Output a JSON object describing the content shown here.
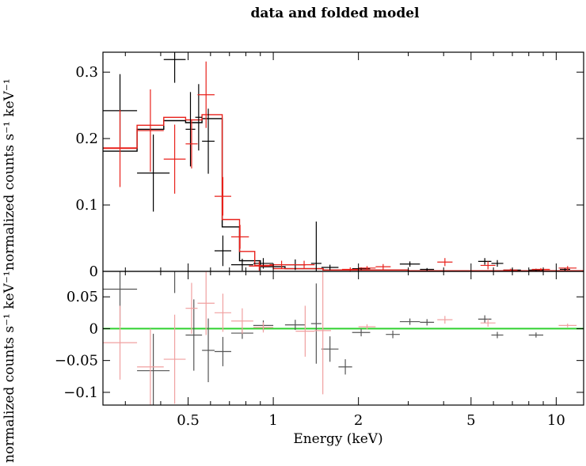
{
  "chart_data": {
    "type": "scatter",
    "title": "data and folded model",
    "xlabel": "Energy (keV)",
    "x_scale": "log",
    "xlim": [
      0.25,
      12.5
    ],
    "x_ticks": [
      {
        "value": 0.5,
        "label": "0.5"
      },
      {
        "value": 1,
        "label": "1"
      },
      {
        "value": 2,
        "label": "2"
      },
      {
        "value": 5,
        "label": "5"
      },
      {
        "value": 10,
        "label": "10"
      }
    ],
    "panels": [
      {
        "id": "top",
        "ylabel": "normalized counts s⁻¹ keV⁻¹",
        "ylim": [
          0,
          0.33
        ],
        "y_ticks": [
          {
            "value": 0,
            "label": "0"
          },
          {
            "value": 0.1,
            "label": "0.1"
          },
          {
            "value": 0.2,
            "label": "0.2"
          },
          {
            "value": 0.3,
            "label": "0.3"
          }
        ],
        "series": [
          {
            "color": "#000000",
            "points": [
              [
                0.25,
                0.33,
                0.242,
                0.055
              ],
              [
                0.33,
                0.43,
                0.148,
                0.058
              ],
              [
                0.41,
                0.49,
                0.319,
                0.035
              ],
              [
                0.49,
                0.53,
                0.214,
                0.056
              ],
              [
                0.53,
                0.56,
                0.232,
                0.05
              ],
              [
                0.56,
                0.62,
                0.196,
                0.049
              ],
              [
                0.62,
                0.71,
                0.031,
                0.023
              ],
              [
                0.71,
                0.85,
                0.01,
                0.009
              ],
              [
                0.85,
                1.0,
                0.012,
                0.008
              ],
              [
                1.1,
                1.3,
                0.01,
                0.008
              ],
              [
                1.36,
                1.48,
                0.012,
                0.063
              ],
              [
                1.48,
                1.7,
                0.006,
                0.004
              ],
              [
                1.9,
                2.2,
                0.004,
                0.002
              ],
              [
                2.8,
                3.3,
                0.011,
                0.004
              ],
              [
                3.3,
                3.7,
                0.003,
                0.002
              ],
              [
                5.3,
                5.9,
                0.015,
                0.005
              ],
              [
                5.9,
                6.5,
                0.012,
                0.005
              ],
              [
                6.5,
                7.5,
                0.002,
                0.002
              ],
              [
                8.0,
                9.0,
                0.002,
                0.002
              ],
              [
                10.3,
                11.2,
                0.003,
                0.002
              ]
            ],
            "model_steps": [
              [
                0.25,
                0.33,
                0.181
              ],
              [
                0.33,
                0.41,
                0.214
              ],
              [
                0.41,
                0.49,
                0.227
              ],
              [
                0.49,
                0.56,
                0.224
              ],
              [
                0.56,
                0.62,
                0.23
              ],
              [
                0.62,
                0.66,
                0.23
              ],
              [
                0.66,
                0.76,
                0.067
              ],
              [
                0.76,
                0.9,
                0.016
              ],
              [
                0.9,
                1.1,
                0.007
              ],
              [
                1.1,
                1.5,
                0.004
              ],
              [
                1.5,
                3.0,
                0.002
              ],
              [
                3.0,
                12.5,
                0.001
              ]
            ]
          },
          {
            "color": "#e8211b",
            "points": [
              [
                0.25,
                0.33,
                0.185,
                0.058
              ],
              [
                0.33,
                0.41,
                0.212,
                0.062
              ],
              [
                0.41,
                0.49,
                0.169,
                0.052
              ],
              [
                0.49,
                0.54,
                0.192,
                0.037
              ],
              [
                0.54,
                0.62,
                0.266,
                0.05
              ],
              [
                0.62,
                0.71,
                0.113,
                0.029
              ],
              [
                0.71,
                0.82,
                0.052,
                0.018
              ],
              [
                0.82,
                0.97,
                0.008,
                0.007
              ],
              [
                0.97,
                1.18,
                0.01,
                0.006
              ],
              [
                1.18,
                1.4,
                0.01,
                0.006
              ],
              [
                1.75,
                2.0,
                0.003,
                0.003
              ],
              [
                2.0,
                2.3,
                0.005,
                0.003
              ],
              [
                2.3,
                2.6,
                0.007,
                0.004
              ],
              [
                3.8,
                4.3,
                0.014,
                0.006
              ],
              [
                5.4,
                6.1,
                0.009,
                0.006
              ],
              [
                6.5,
                7.3,
                0.002,
                0.002
              ],
              [
                8.2,
                9.5,
                0.003,
                0.002
              ],
              [
                10.2,
                11.8,
                0.005,
                0.003
              ]
            ],
            "model_steps": [
              [
                0.25,
                0.33,
                0.186
              ],
              [
                0.33,
                0.41,
                0.22
              ],
              [
                0.41,
                0.49,
                0.232
              ],
              [
                0.49,
                0.56,
                0.228
              ],
              [
                0.56,
                0.66,
                0.236
              ],
              [
                0.66,
                0.76,
                0.078
              ],
              [
                0.76,
                0.86,
                0.03
              ],
              [
                0.86,
                1.0,
                0.009
              ],
              [
                1.0,
                1.5,
                0.004
              ],
              [
                1.5,
                3.0,
                0.002
              ],
              [
                3.0,
                12.5,
                0.001
              ]
            ]
          }
        ]
      },
      {
        "id": "bottom",
        "ylabel": "normalized counts s⁻¹ keV⁻¹",
        "ylim": [
          -0.12,
          0.09
        ],
        "y_ticks": [
          {
            "value": -0.1,
            "label": "−0.1"
          },
          {
            "value": -0.05,
            "label": "−0.05"
          },
          {
            "value": 0,
            "label": "0"
          },
          {
            "value": 0.05,
            "label": "0.05"
          }
        ],
        "zero_line_color": "#2fd12f",
        "series": [
          {
            "color": "#555555",
            "points": [
              [
                0.25,
                0.33,
                0.062,
                0.058
              ],
              [
                0.33,
                0.43,
                -0.066,
                0.058
              ],
              [
                0.41,
                0.49,
                0.092,
                0.036
              ],
              [
                0.49,
                0.56,
                -0.01,
                0.056
              ],
              [
                0.56,
                0.62,
                -0.034,
                0.05
              ],
              [
                0.62,
                0.71,
                -0.036,
                0.023
              ],
              [
                0.71,
                0.85,
                -0.007,
                0.009
              ],
              [
                0.85,
                1.0,
                0.005,
                0.008
              ],
              [
                1.1,
                1.3,
                0.006,
                0.008
              ],
              [
                1.36,
                1.48,
                0.008,
                0.063
              ],
              [
                1.48,
                1.7,
                -0.032,
                0.02
              ],
              [
                1.7,
                1.9,
                -0.06,
                0.012
              ],
              [
                1.9,
                2.2,
                -0.006,
                0.006
              ],
              [
                2.5,
                2.8,
                -0.009,
                0.006
              ],
              [
                2.8,
                3.3,
                0.011,
                0.005
              ],
              [
                3.3,
                3.7,
                0.01,
                0.005
              ],
              [
                5.3,
                5.9,
                0.015,
                0.006
              ],
              [
                5.9,
                6.5,
                -0.01,
                0.005
              ],
              [
                8.0,
                9.0,
                -0.01,
                0.004
              ]
            ]
          },
          {
            "color": "#f0a0a0",
            "points": [
              [
                0.25,
                0.33,
                -0.022,
                0.058
              ],
              [
                0.33,
                0.41,
                -0.06,
                0.06
              ],
              [
                0.41,
                0.49,
                -0.048,
                0.07
              ],
              [
                0.49,
                0.54,
                0.032,
                0.04
              ],
              [
                0.54,
                0.62,
                0.04,
                0.05
              ],
              [
                0.62,
                0.71,
                0.025,
                0.03
              ],
              [
                0.71,
                0.85,
                0.012,
                0.02
              ],
              [
                0.85,
                1.0,
                0.002,
                0.008
              ],
              [
                1.2,
                1.4,
                -0.004,
                0.04
              ],
              [
                1.4,
                1.6,
                -0.003,
                0.1
              ],
              [
                2.0,
                2.3,
                0.003,
                0.004
              ],
              [
                3.8,
                4.3,
                0.014,
                0.006
              ],
              [
                5.4,
                6.1,
                0.009,
                0.006
              ],
              [
                10.2,
                11.8,
                0.005,
                0.003
              ]
            ]
          }
        ]
      }
    ]
  }
}
